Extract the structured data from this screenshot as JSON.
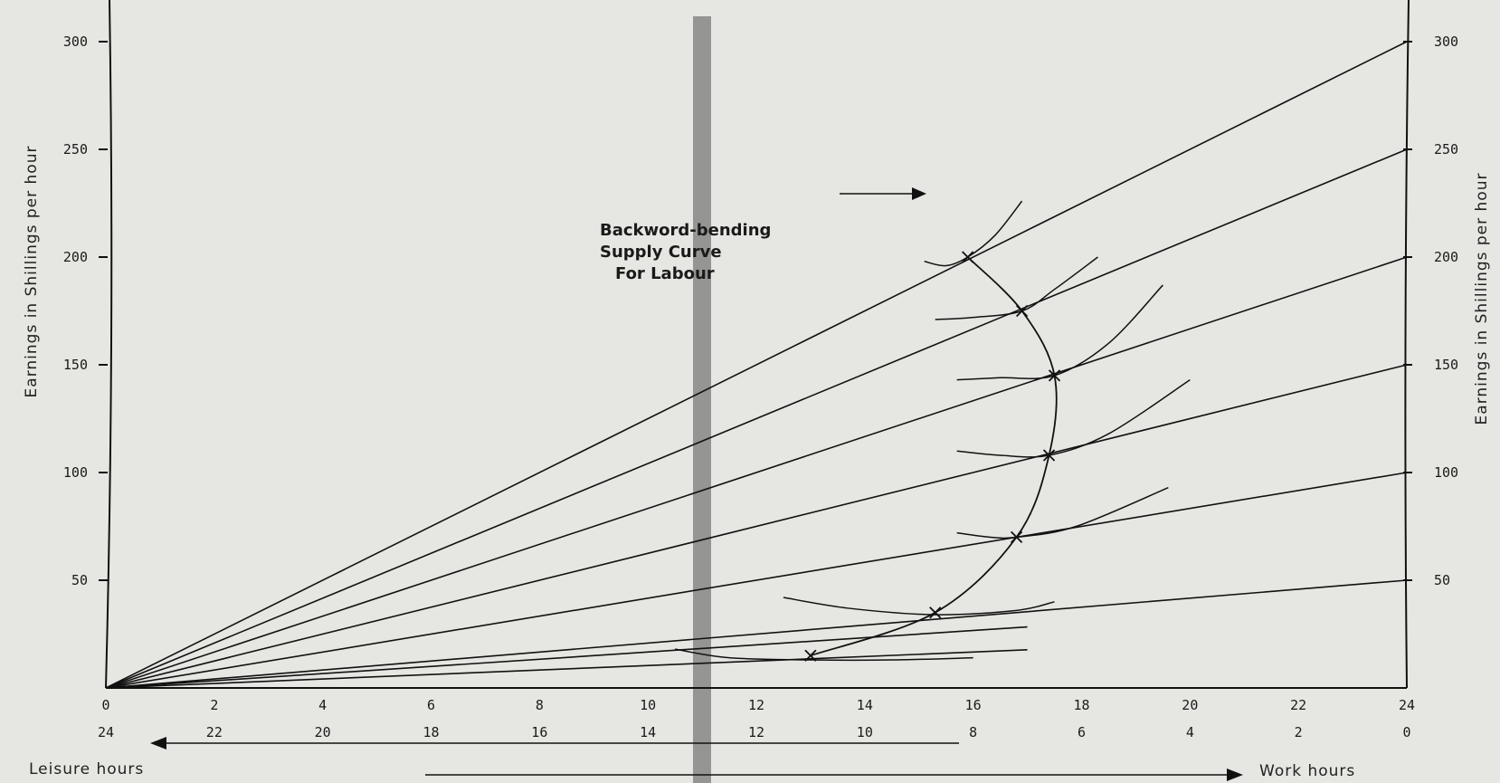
{
  "chart_data": {
    "type": "line",
    "x_ticks": [
      0,
      2,
      4,
      6,
      8,
      10,
      12,
      14,
      16,
      18,
      20,
      22,
      24
    ],
    "leisure_ticks": [
      24,
      22,
      20,
      18,
      16,
      14,
      12,
      10,
      8,
      6,
      4,
      2,
      0
    ],
    "y_left_ticks": [
      50,
      100,
      150,
      200,
      250,
      300
    ],
    "y_right_ticks": [
      50,
      100,
      150,
      200,
      250,
      300
    ],
    "y_left_label": "Earnings in Shillings per hour",
    "y_right_label": "Earnings in Shillings per hour",
    "leisure_label": "Leisure hours",
    "work_label": "Work hours",
    "annotation_lines": [
      "Backword-bending",
      "Supply Curve",
      "For Labour"
    ],
    "xlim": [
      0,
      24
    ],
    "ylim": [
      0,
      300
    ],
    "budget_lines_end_y": [
      50,
      100,
      150,
      200,
      250,
      300
    ],
    "extra_budget_lines_end_y": [
      25,
      40
    ],
    "supply_curve_points": [
      {
        "x": 13.0,
        "y": 15
      },
      {
        "x": 15.3,
        "y": 35
      },
      {
        "x": 16.8,
        "y": 70
      },
      {
        "x": 17.4,
        "y": 108
      },
      {
        "x": 17.5,
        "y": 145
      },
      {
        "x": 16.9,
        "y": 175
      },
      {
        "x": 15.9,
        "y": 200
      }
    ],
    "indifference_curves": [
      [
        [
          10.5,
          18
        ],
        [
          11.5,
          14
        ],
        [
          13.0,
          13
        ],
        [
          14.5,
          13
        ],
        [
          16.0,
          14
        ]
      ],
      [
        [
          12.5,
          42
        ],
        [
          13.7,
          37
        ],
        [
          15.3,
          34
        ],
        [
          16.8,
          36
        ],
        [
          17.5,
          40
        ]
      ],
      [
        [
          15.7,
          72
        ],
        [
          16.3,
          70
        ],
        [
          16.8,
          70
        ],
        [
          17.9,
          75
        ],
        [
          19.6,
          93
        ]
      ],
      [
        [
          15.7,
          110
        ],
        [
          16.5,
          108
        ],
        [
          17.4,
          108
        ],
        [
          18.5,
          118
        ],
        [
          20.0,
          143
        ]
      ],
      [
        [
          15.7,
          143
        ],
        [
          16.5,
          144
        ],
        [
          17.5,
          145
        ],
        [
          18.5,
          160
        ],
        [
          19.5,
          187
        ]
      ],
      [
        [
          15.3,
          171
        ],
        [
          16.0,
          172
        ],
        [
          16.9,
          175
        ],
        [
          17.5,
          185
        ],
        [
          18.3,
          200
        ]
      ],
      [
        [
          15.1,
          198
        ],
        [
          15.5,
          196
        ],
        [
          15.9,
          200
        ],
        [
          16.4,
          210
        ],
        [
          16.9,
          226
        ]
      ]
    ]
  }
}
